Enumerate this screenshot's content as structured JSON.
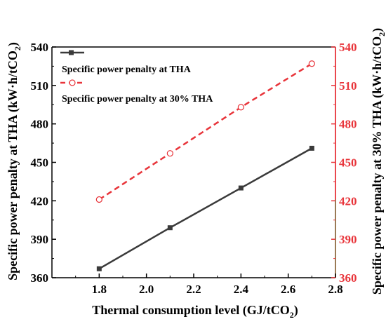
{
  "chart_data": {
    "type": "line",
    "xlabel": "Thermal consumption level (GJ/tCO",
    "xlabel_sub": "2",
    "xlabel_tail": ")",
    "ylabel_left": "Specific power penalty at THA (kW·h/tCO",
    "ylabel_left_sub": "2",
    "ylabel_left_tail": ")",
    "ylabel_right": "Specific power penalty at 30% THA (kW·h/tCO",
    "ylabel_right_sub": "2",
    "ylabel_right_tail": ")",
    "xlim": [
      1.6,
      2.8
    ],
    "ylim_left": [
      360,
      540
    ],
    "ylim_right": [
      360,
      540
    ],
    "x_ticks": [
      "1.8",
      "2.0",
      "2.2",
      "2.4",
      "2.6",
      "2.8"
    ],
    "y_ticks_left": [
      "360",
      "390",
      "420",
      "450",
      "480",
      "510",
      "540"
    ],
    "y_ticks_right": [
      "360",
      "390",
      "420",
      "450",
      "480",
      "510",
      "540"
    ],
    "x": [
      1.8,
      2.1,
      2.4,
      2.7
    ],
    "series": [
      {
        "name": "Specific power penalty at THA",
        "values": [
          367,
          399,
          430,
          461
        ],
        "color": "#3a3a3a",
        "axis": "left"
      },
      {
        "name": "Specific power penalty at 30% THA",
        "values": [
          421,
          457,
          493,
          527
        ],
        "color": "#e8343a",
        "axis": "right"
      }
    ],
    "right_axis_color": "#e8343a",
    "right_spine_color": "#9a7a55",
    "grid": false,
    "legend_position": "top-left"
  }
}
